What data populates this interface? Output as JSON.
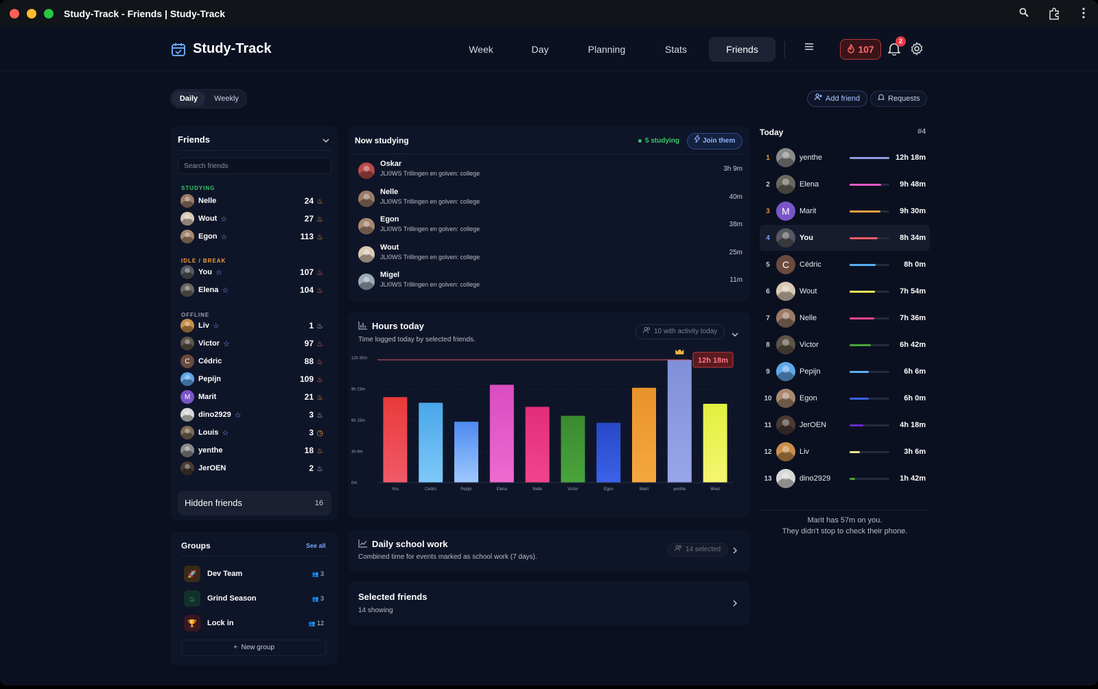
{
  "window": {
    "title": "Study-Track - Friends | Study-Track"
  },
  "app": {
    "name": "Study-Track"
  },
  "nav": {
    "items": [
      "Week",
      "Day",
      "Planning",
      "Stats",
      "Friends"
    ],
    "active": "Friends",
    "streak": "107",
    "notifications": "2"
  },
  "toggle": {
    "daily": "Daily",
    "weekly": "Weekly"
  },
  "actions": {
    "add_friend": "Add friend",
    "requests": "Requests"
  },
  "friends": {
    "title": "Friends",
    "search_placeholder": "Search friends",
    "sections": {
      "studying": "STUDYING",
      "idle": "IDLE / BREAK",
      "offline": "OFFLINE"
    },
    "studying": [
      {
        "name": "Nelle",
        "count": "24",
        "star": false,
        "color": "#9a7b66"
      },
      {
        "name": "Wout",
        "count": "27",
        "star": true,
        "color": "#d9c9b4"
      },
      {
        "name": "Egon",
        "count": "113",
        "star": true,
        "color": "#a88970"
      }
    ],
    "idle": [
      {
        "name": "You",
        "count": "107",
        "star": true,
        "color": "#55585e"
      },
      {
        "name": "Elena",
        "count": "104",
        "star": true,
        "color": "#6a6760"
      }
    ],
    "offline": [
      {
        "name": "Liv",
        "count": "1",
        "star": true,
        "color": "#c98e4a"
      },
      {
        "name": "Victor",
        "count": "97",
        "star": true,
        "color": "#5e5448"
      },
      {
        "name": "Cédric",
        "count": "88",
        "star": false,
        "color": "#6b4a3e",
        "letter": "C"
      },
      {
        "name": "Pepijn",
        "count": "109",
        "star": false,
        "color": "#5fa8e8"
      },
      {
        "name": "Marit",
        "count": "21",
        "star": false,
        "color": "#7a55c8",
        "letter": "M"
      },
      {
        "name": "dino2929",
        "count": "3",
        "star": true,
        "color": "#d8d8d8"
      },
      {
        "name": "Louis",
        "count": "3",
        "star": true,
        "color": "#7d6a55"
      },
      {
        "name": "yenthe",
        "count": "18",
        "star": false,
        "color": "#8a8a8a"
      },
      {
        "name": "JerOEN",
        "count": "2",
        "star": false,
        "color": "#4a3a32"
      }
    ],
    "hidden_label": "Hidden friends",
    "hidden_count": "16"
  },
  "groups": {
    "title": "Groups",
    "see_all": "See all",
    "items": [
      {
        "name": "Dev Team",
        "count": "3",
        "icon": "rocket-icon",
        "bg": "#3a2a18",
        "fg": "#e0a040",
        "glyph": "🚀"
      },
      {
        "name": "Grind Season",
        "count": "3",
        "icon": "flame-icon",
        "bg": "#12302a",
        "fg": "#3cc48a",
        "glyph": "♨"
      },
      {
        "name": "Lock in",
        "count": "12",
        "icon": "trophy-icon",
        "bg": "#3a1620",
        "fg": "#ff5a6a",
        "glyph": "🏆"
      }
    ],
    "new_group": "New group"
  },
  "now_studying": {
    "title": "Now studying",
    "count_label": "5 studying",
    "join": "Join them",
    "rows": [
      {
        "name": "Oskar",
        "subject": "JLI0WS Trillingen en golven: college",
        "time": "3h 9m",
        "color": "#b84a4a"
      },
      {
        "name": "Nelle",
        "subject": "JLI0WS Trillingen en golven: college",
        "time": "40m",
        "color": "#9a7b66"
      },
      {
        "name": "Egon",
        "subject": "JLI0WS Trillingen en golven: college",
        "time": "38m",
        "color": "#a88970"
      },
      {
        "name": "Wout",
        "subject": "JLI0WS Trillingen en golven: college",
        "time": "25m",
        "color": "#d9c9b4"
      },
      {
        "name": "Migel",
        "subject": "JLI0WS Trillingen en golven: college",
        "time": "11m",
        "color": "#9aaab8"
      }
    ]
  },
  "hours_today": {
    "title": "Hours today",
    "subtitle": "Time logged today by selected friends.",
    "filter": "10 with activity today",
    "max_label": "12h 18m"
  },
  "chart_data": {
    "type": "bar",
    "title": "Hours today",
    "categories": [
      "You",
      "Cédric",
      "Pepijn",
      "Elena",
      "Nelle",
      "Victor",
      "Egon",
      "Marit",
      "yenthe",
      "Wout"
    ],
    "values": [
      8.57,
      8.0,
      6.1,
      9.8,
      7.6,
      6.7,
      6.0,
      9.5,
      12.3,
      7.9
    ],
    "yticks": [
      "0m",
      "3h 8m",
      "6h 15m",
      "9h 23m",
      "12h 30m"
    ],
    "ylim": [
      0,
      12.5
    ],
    "colors": [
      [
        "#f05a68",
        "#e83a3a"
      ],
      [
        "#7ec8f8",
        "#49a7ea"
      ],
      [
        "#9ec8ff",
        "#4d8af0"
      ],
      [
        "#ee6ad0",
        "#d94cc0"
      ],
      [
        "#f0458e",
        "#e22d7a"
      ],
      [
        "#4aa43c",
        "#3a8a30"
      ],
      [
        "#3b62e8",
        "#2848c8"
      ],
      [
        "#f5a840",
        "#e8922a"
      ],
      [
        "#98a6e8",
        "#8090d8"
      ],
      [
        "#f5f570",
        "#e0f040"
      ]
    ]
  },
  "school_work": {
    "title": "Daily school work",
    "subtitle": "Combined time for events marked as school work (7 days).",
    "selected": "14 selected"
  },
  "selected_friends": {
    "title": "Selected friends",
    "subtitle": "14 showing"
  },
  "today": {
    "title": "Today",
    "rank": "#4",
    "rows": [
      {
        "rank": "1",
        "name": "yenthe",
        "time": "12h 18m",
        "pct": 1.0,
        "bar": "#8f9ce0",
        "color": "#8a8a8a",
        "rankColor": "#e0a93a"
      },
      {
        "rank": "2",
        "name": "Elena",
        "time": "9h 48m",
        "pct": 0.8,
        "bar": "#e85ac8",
        "color": "#6a6760",
        "rankColor": "#c9cdd8"
      },
      {
        "rank": "3",
        "name": "Marit",
        "time": "9h 30m",
        "pct": 0.77,
        "bar": "#f0a040",
        "color": "#7a55c8",
        "letter": "M",
        "rankColor": "#e08a3a"
      },
      {
        "rank": "4",
        "name": "You",
        "time": "8h 34m",
        "pct": 0.7,
        "bar": "#f05a68",
        "color": "#55585e",
        "rankColor": "#7aa3ff"
      },
      {
        "rank": "5",
        "name": "Cédric",
        "time": "8h 0m",
        "pct": 0.65,
        "bar": "#5ab0f0",
        "color": "#6b4a3e",
        "letter": "C",
        "rankColor": "#c9cdd8"
      },
      {
        "rank": "6",
        "name": "Wout",
        "time": "7h 54m",
        "pct": 0.64,
        "bar": "#f0f050",
        "color": "#d9c9b4",
        "rankColor": "#c9cdd8"
      },
      {
        "rank": "7",
        "name": "Nelle",
        "time": "7h 36m",
        "pct": 0.62,
        "bar": "#f0458e",
        "color": "#9a7b66",
        "rankColor": "#c9cdd8"
      },
      {
        "rank": "8",
        "name": "Victor",
        "time": "6h 42m",
        "pct": 0.54,
        "bar": "#4aa43c",
        "color": "#5e5448",
        "rankColor": "#c9cdd8"
      },
      {
        "rank": "9",
        "name": "Pepijn",
        "time": "6h 6m",
        "pct": 0.49,
        "bar": "#5ab0f0",
        "color": "#5fa8e8",
        "rankColor": "#c9cdd8"
      },
      {
        "rank": "10",
        "name": "Egon",
        "time": "6h 0m",
        "pct": 0.49,
        "bar": "#3b62e8",
        "color": "#a88970",
        "rankColor": "#c9cdd8"
      },
      {
        "rank": "11",
        "name": "JerOEN",
        "time": "4h 18m",
        "pct": 0.35,
        "bar": "#6a2ad0",
        "color": "#4a3a32",
        "rankColor": "#c9cdd8"
      },
      {
        "rank": "12",
        "name": "Liv",
        "time": "3h 6m",
        "pct": 0.25,
        "bar": "#f5e090",
        "color": "#c98e4a",
        "rankColor": "#c9cdd8"
      },
      {
        "rank": "13",
        "name": "dino2929",
        "time": "1h 42m",
        "pct": 0.14,
        "bar": "#4aa43c",
        "color": "#d8d8d8",
        "rankColor": "#c9cdd8"
      }
    ],
    "footer1": "Marit has 57m on you.",
    "footer2": "They didn't stop to check their phone."
  }
}
